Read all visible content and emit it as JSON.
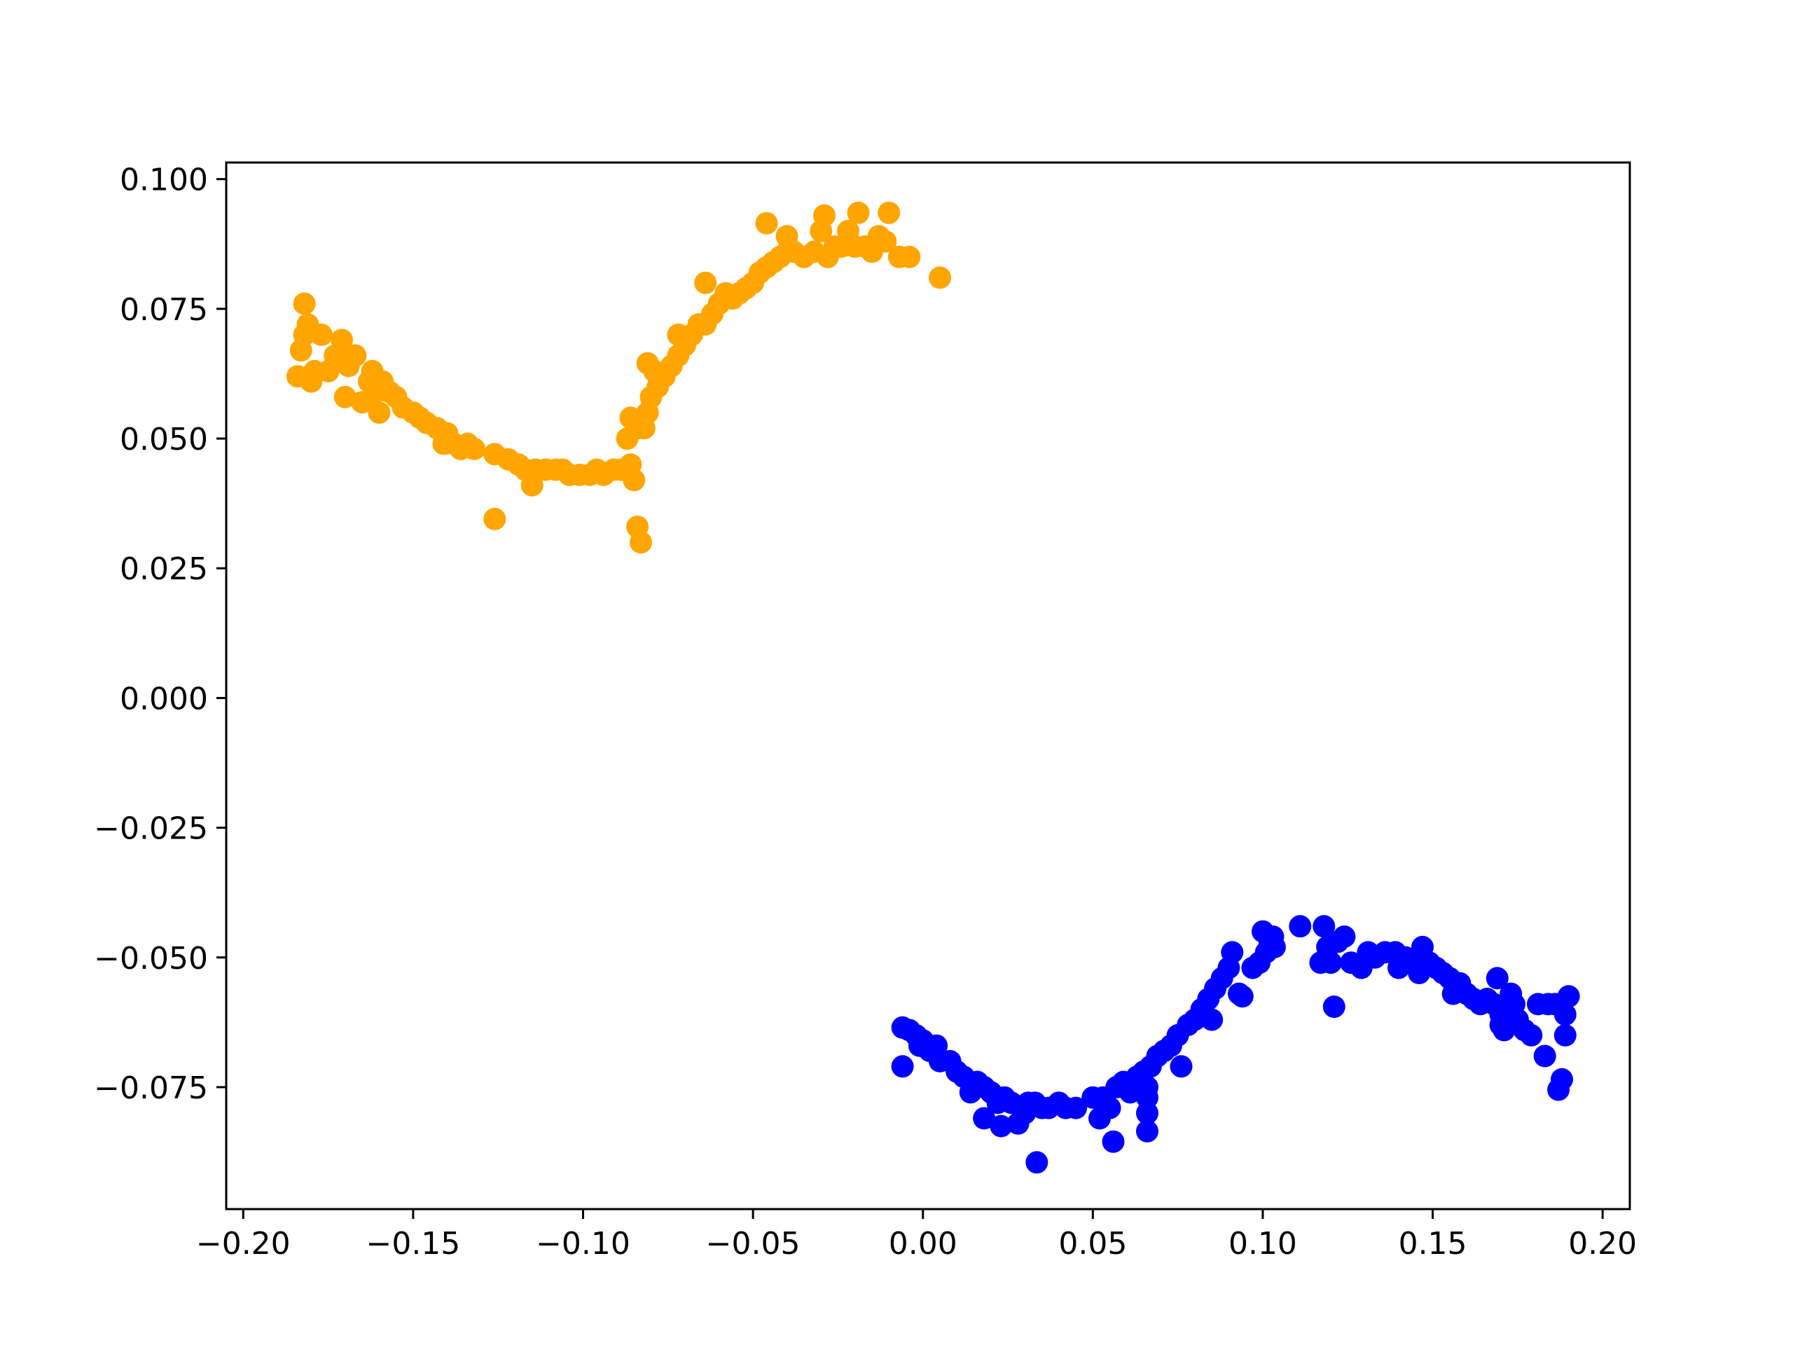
{
  "chart_data": {
    "type": "scatter",
    "title": "",
    "xlabel": "",
    "ylabel": "",
    "xlim": [
      -0.205,
      0.208
    ],
    "ylim": [
      -0.0985,
      0.1032
    ],
    "grid": false,
    "legend": "none",
    "x_ticks": [
      -0.2,
      -0.15,
      -0.1,
      -0.05,
      0.0,
      0.05,
      0.1,
      0.15,
      0.2
    ],
    "x_tick_labels": [
      "−0.20",
      "−0.15",
      "−0.10",
      "−0.05",
      "0.00",
      "0.05",
      "0.10",
      "0.15",
      "0.20"
    ],
    "y_ticks": [
      0.1,
      0.075,
      0.05,
      0.025,
      0.0,
      -0.025,
      -0.05,
      -0.075
    ],
    "y_tick_labels": [
      "0.100",
      "0.075",
      "0.050",
      "0.025",
      "0.000",
      "−0.025",
      "−0.050",
      "−0.075"
    ],
    "series": [
      {
        "color": "#ffa500",
        "points": [
          [
            -0.184,
            0.062
          ],
          [
            -0.183,
            0.067
          ],
          [
            -0.182,
            0.076
          ],
          [
            -0.182,
            0.07
          ],
          [
            -0.181,
            0.072
          ],
          [
            -0.18,
            0.061
          ],
          [
            -0.179,
            0.063
          ],
          [
            -0.177,
            0.07
          ],
          [
            -0.175,
            0.063
          ],
          [
            -0.173,
            0.066
          ],
          [
            -0.171,
            0.069
          ],
          [
            -0.17,
            0.058
          ],
          [
            -0.169,
            0.064
          ],
          [
            -0.167,
            0.066
          ],
          [
            -0.165,
            0.057
          ],
          [
            -0.163,
            0.061
          ],
          [
            -0.162,
            0.063
          ],
          [
            -0.161,
            0.059
          ],
          [
            -0.16,
            0.055
          ],
          [
            -0.159,
            0.061
          ],
          [
            -0.157,
            0.059
          ],
          [
            -0.155,
            0.058
          ],
          [
            -0.153,
            0.056
          ],
          [
            -0.15,
            0.055
          ],
          [
            -0.148,
            0.054
          ],
          [
            -0.146,
            0.053
          ],
          [
            -0.143,
            0.052
          ],
          [
            -0.141,
            0.049
          ],
          [
            -0.14,
            0.051
          ],
          [
            -0.138,
            0.049
          ],
          [
            -0.136,
            0.048
          ],
          [
            -0.134,
            0.049
          ],
          [
            -0.132,
            0.048
          ],
          [
            -0.126,
            0.047
          ],
          [
            -0.126,
            0.0345
          ],
          [
            -0.122,
            0.046
          ],
          [
            -0.119,
            0.045
          ],
          [
            -0.117,
            0.044
          ],
          [
            -0.115,
            0.041
          ],
          [
            -0.114,
            0.044
          ],
          [
            -0.111,
            0.044
          ],
          [
            -0.108,
            0.044
          ],
          [
            -0.106,
            0.044
          ],
          [
            -0.104,
            0.043
          ],
          [
            -0.101,
            0.043
          ],
          [
            -0.098,
            0.043
          ],
          [
            -0.096,
            0.044
          ],
          [
            -0.094,
            0.043
          ],
          [
            -0.091,
            0.044
          ],
          [
            -0.089,
            0.044
          ],
          [
            -0.087,
            0.044
          ],
          [
            -0.086,
            0.045
          ],
          [
            -0.085,
            0.042
          ],
          [
            -0.084,
            0.033
          ],
          [
            -0.083,
            0.03
          ],
          [
            -0.087,
            0.05
          ],
          [
            -0.086,
            0.054
          ],
          [
            -0.084,
            0.052
          ],
          [
            -0.082,
            0.052
          ],
          [
            -0.081,
            0.055
          ],
          [
            -0.08,
            0.058
          ],
          [
            -0.078,
            0.06
          ],
          [
            -0.076,
            0.062
          ],
          [
            -0.074,
            0.064
          ],
          [
            -0.072,
            0.066
          ],
          [
            -0.081,
            0.0645
          ],
          [
            -0.079,
            0.063
          ],
          [
            -0.072,
            0.07
          ],
          [
            -0.07,
            0.068
          ],
          [
            -0.068,
            0.07
          ],
          [
            -0.066,
            0.072
          ],
          [
            -0.064,
            0.072
          ],
          [
            -0.062,
            0.074
          ],
          [
            -0.06,
            0.076
          ],
          [
            -0.058,
            0.078
          ],
          [
            -0.064,
            0.08
          ],
          [
            -0.056,
            0.077
          ],
          [
            -0.054,
            0.078
          ],
          [
            -0.052,
            0.079
          ],
          [
            -0.05,
            0.08
          ],
          [
            -0.048,
            0.082
          ],
          [
            -0.046,
            0.083
          ],
          [
            -0.044,
            0.084
          ],
          [
            -0.042,
            0.085
          ],
          [
            -0.04,
            0.086
          ],
          [
            -0.046,
            0.0915
          ],
          [
            -0.04,
            0.089
          ],
          [
            -0.038,
            0.086
          ],
          [
            -0.035,
            0.085
          ],
          [
            -0.032,
            0.086
          ],
          [
            -0.03,
            0.09
          ],
          [
            -0.029,
            0.093
          ],
          [
            -0.028,
            0.085
          ],
          [
            -0.026,
            0.087
          ],
          [
            -0.024,
            0.087
          ],
          [
            -0.022,
            0.09
          ],
          [
            -0.02,
            0.087
          ],
          [
            -0.019,
            0.0935
          ],
          [
            -0.017,
            0.087
          ],
          [
            -0.015,
            0.086
          ],
          [
            -0.013,
            0.089
          ],
          [
            -0.011,
            0.088
          ],
          [
            -0.01,
            0.0935
          ],
          [
            -0.007,
            0.085
          ],
          [
            -0.004,
            0.085
          ],
          [
            0.005,
            0.081
          ]
        ]
      },
      {
        "color": "#0000ff",
        "points": [
          [
            -0.006,
            -0.071
          ],
          [
            -0.006,
            -0.0635
          ],
          [
            -0.004,
            -0.064
          ],
          [
            -0.002,
            -0.065
          ],
          [
            -0.001,
            -0.067
          ],
          [
            0.0,
            -0.066
          ],
          [
            0.002,
            -0.068
          ],
          [
            0.004,
            -0.067
          ],
          [
            0.005,
            -0.07
          ],
          [
            0.008,
            -0.07
          ],
          [
            0.01,
            -0.072
          ],
          [
            0.012,
            -0.073
          ],
          [
            0.014,
            -0.076
          ],
          [
            0.016,
            -0.074
          ],
          [
            0.018,
            -0.075
          ],
          [
            0.018,
            -0.081
          ],
          [
            0.02,
            -0.076
          ],
          [
            0.022,
            -0.078
          ],
          [
            0.023,
            -0.0825
          ],
          [
            0.024,
            -0.077
          ],
          [
            0.026,
            -0.078
          ],
          [
            0.028,
            -0.082
          ],
          [
            0.03,
            -0.08
          ],
          [
            0.031,
            -0.078
          ],
          [
            0.033,
            -0.078
          ],
          [
            0.0335,
            -0.0895
          ],
          [
            0.035,
            -0.079
          ],
          [
            0.037,
            -0.079
          ],
          [
            0.04,
            -0.078
          ],
          [
            0.042,
            -0.079
          ],
          [
            0.045,
            -0.079
          ],
          [
            0.05,
            -0.077
          ],
          [
            0.052,
            -0.081
          ],
          [
            0.053,
            -0.077
          ],
          [
            0.055,
            -0.079
          ],
          [
            0.056,
            -0.0855
          ],
          [
            0.057,
            -0.075
          ],
          [
            0.059,
            -0.074
          ],
          [
            0.061,
            -0.076
          ],
          [
            0.063,
            -0.073
          ],
          [
            0.065,
            -0.072
          ],
          [
            0.066,
            -0.075
          ],
          [
            0.066,
            -0.077
          ],
          [
            0.066,
            -0.08
          ],
          [
            0.066,
            -0.0835
          ],
          [
            0.067,
            -0.071
          ],
          [
            0.069,
            -0.069
          ],
          [
            0.071,
            -0.068
          ],
          [
            0.073,
            -0.067
          ],
          [
            0.075,
            -0.065
          ],
          [
            0.076,
            -0.071
          ],
          [
            0.078,
            -0.063
          ],
          [
            0.08,
            -0.062
          ],
          [
            0.082,
            -0.06
          ],
          [
            0.084,
            -0.058
          ],
          [
            0.085,
            -0.062
          ],
          [
            0.086,
            -0.056
          ],
          [
            0.088,
            -0.054
          ],
          [
            0.09,
            -0.052
          ],
          [
            0.091,
            -0.049
          ],
          [
            0.093,
            -0.057
          ],
          [
            0.094,
            -0.0575
          ],
          [
            0.097,
            -0.052
          ],
          [
            0.099,
            -0.051
          ],
          [
            0.1,
            -0.045
          ],
          [
            0.101,
            -0.049
          ],
          [
            0.102,
            -0.047
          ],
          [
            0.103,
            -0.046
          ],
          [
            0.1035,
            -0.048
          ],
          [
            0.111,
            -0.044
          ],
          [
            0.117,
            -0.051
          ],
          [
            0.118,
            -0.044
          ],
          [
            0.119,
            -0.048
          ],
          [
            0.12,
            -0.051
          ],
          [
            0.121,
            -0.0595
          ],
          [
            0.122,
            -0.047
          ],
          [
            0.124,
            -0.046
          ],
          [
            0.126,
            -0.051
          ],
          [
            0.129,
            -0.052
          ],
          [
            0.131,
            -0.049
          ],
          [
            0.133,
            -0.05
          ],
          [
            0.136,
            -0.049
          ],
          [
            0.139,
            -0.049
          ],
          [
            0.14,
            -0.052
          ],
          [
            0.142,
            -0.05
          ],
          [
            0.144,
            -0.051
          ],
          [
            0.146,
            -0.053
          ],
          [
            0.147,
            -0.048
          ],
          [
            0.149,
            -0.051
          ],
          [
            0.151,
            -0.052
          ],
          [
            0.153,
            -0.053
          ],
          [
            0.155,
            -0.054
          ],
          [
            0.156,
            -0.057
          ],
          [
            0.158,
            -0.055
          ],
          [
            0.16,
            -0.057
          ],
          [
            0.162,
            -0.058
          ],
          [
            0.164,
            -0.059
          ],
          [
            0.166,
            -0.058
          ],
          [
            0.168,
            -0.059
          ],
          [
            0.169,
            -0.054
          ],
          [
            0.17,
            -0.061
          ],
          [
            0.17,
            -0.063
          ],
          [
            0.171,
            -0.064
          ],
          [
            0.172,
            -0.06
          ],
          [
            0.173,
            -0.057
          ],
          [
            0.174,
            -0.059
          ],
          [
            0.175,
            -0.062
          ],
          [
            0.177,
            -0.064
          ],
          [
            0.179,
            -0.065
          ],
          [
            0.181,
            -0.059
          ],
          [
            0.183,
            -0.069
          ],
          [
            0.184,
            -0.059
          ],
          [
            0.186,
            -0.059
          ],
          [
            0.187,
            -0.0755
          ],
          [
            0.188,
            -0.0735
          ],
          [
            0.189,
            -0.065
          ],
          [
            0.189,
            -0.061
          ],
          [
            0.19,
            -0.0575
          ]
        ]
      }
    ]
  }
}
